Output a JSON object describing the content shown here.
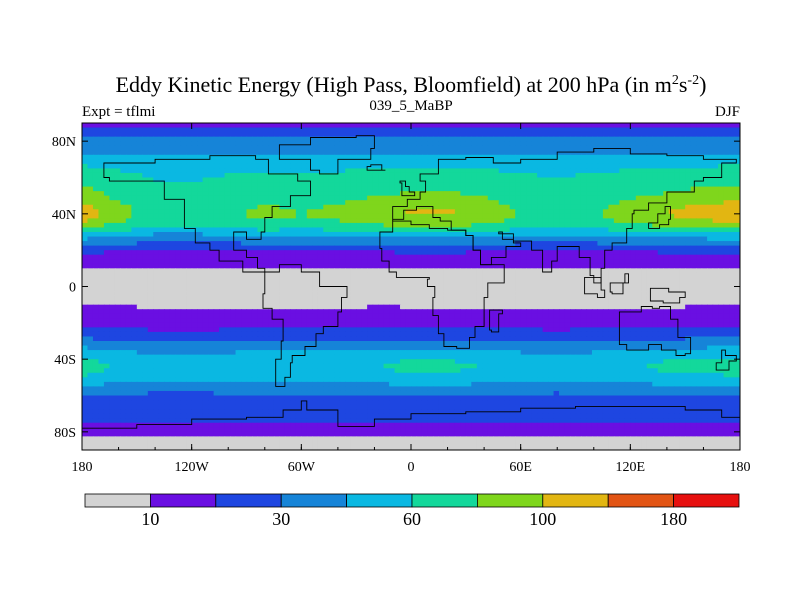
{
  "chart_data": {
    "type": "heatmap",
    "title_main": "Eddy Kinetic Energy (High Pass, Bloomfield) at 200 hPa (in m",
    "title_sup1": "2",
    "title_mid": "s",
    "title_sup2": "-2",
    "title_end": ")",
    "left_label": "Expt = tflmi",
    "center_label": "039_5_MaBP",
    "right_label": "DJF",
    "x_range": [
      -180,
      180
    ],
    "y_range": [
      -90,
      90
    ],
    "x_ticks": [
      {
        "value": -180,
        "label": "180"
      },
      {
        "value": -120,
        "label": "120W"
      },
      {
        "value": -60,
        "label": "60W"
      },
      {
        "value": 0,
        "label": "0"
      },
      {
        "value": 60,
        "label": "60E"
      },
      {
        "value": 120,
        "label": "120E"
      },
      {
        "value": 180,
        "label": "180"
      }
    ],
    "y_ticks": [
      {
        "value": 80,
        "label": "80N"
      },
      {
        "value": 40,
        "label": "40N"
      },
      {
        "value": 0,
        "label": "0"
      },
      {
        "value": -40,
        "label": "40S"
      },
      {
        "value": -80,
        "label": "80S"
      }
    ],
    "levels": [
      {
        "max": 10,
        "color": "#d3d3d3"
      },
      {
        "max": 20,
        "color": "#6a0fe2"
      },
      {
        "max": 30,
        "color": "#1e46e1"
      },
      {
        "max": 45,
        "color": "#1684d8"
      },
      {
        "max": 60,
        "color": "#0ab8e2"
      },
      {
        "max": 80,
        "color": "#13d89b"
      },
      {
        "max": 100,
        "color": "#7fd61c"
      },
      {
        "max": 140,
        "color": "#e2b612"
      },
      {
        "max": 180,
        "color": "#e25414"
      },
      {
        "max": 250,
        "color": "#e6100f"
      }
    ],
    "colorbar_labels": [
      {
        "after_box": 1,
        "label": "10"
      },
      {
        "after_box": 3,
        "label": "30"
      },
      {
        "after_box": 5,
        "label": "60"
      },
      {
        "after_box": 7,
        "label": "100"
      },
      {
        "after_box": 9,
        "label": "180"
      }
    ],
    "lat_bands": [
      {
        "lat": 90,
        "value": 18
      },
      {
        "lat": 85,
        "value": 24
      },
      {
        "lat": 80,
        "value": 33
      },
      {
        "lat": 75,
        "value": 42
      },
      {
        "lat": 70,
        "value": 52
      },
      {
        "lat": 65,
        "value": 58
      },
      {
        "lat": 60,
        "value": 64
      },
      {
        "lat": 55,
        "value": 68
      },
      {
        "lat": 50,
        "value": 72
      },
      {
        "lat": 45,
        "value": 80
      },
      {
        "lat": 40,
        "value": 85
      },
      {
        "lat": 35,
        "value": 78
      },
      {
        "lat": 30,
        "value": 55
      },
      {
        "lat": 25,
        "value": 34
      },
      {
        "lat": 20,
        "value": 21
      },
      {
        "lat": 15,
        "value": 14
      },
      {
        "lat": 10,
        "value": 10
      },
      {
        "lat": 5,
        "value": 9
      },
      {
        "lat": 0,
        "value": 9
      },
      {
        "lat": -5,
        "value": 9
      },
      {
        "lat": -10,
        "value": 10
      },
      {
        "lat": -15,
        "value": 12
      },
      {
        "lat": -20,
        "value": 16
      },
      {
        "lat": -25,
        "value": 22
      },
      {
        "lat": -30,
        "value": 30
      },
      {
        "lat": -35,
        "value": 44
      },
      {
        "lat": -40,
        "value": 54
      },
      {
        "lat": -45,
        "value": 57
      },
      {
        "lat": -50,
        "value": 52
      },
      {
        "lat": -55,
        "value": 40
      },
      {
        "lat": -60,
        "value": 28
      },
      {
        "lat": -65,
        "value": 24
      },
      {
        "lat": -70,
        "value": 25
      },
      {
        "lat": -75,
        "value": 22
      },
      {
        "lat": -80,
        "value": 14
      },
      {
        "lat": -85,
        "value": 8
      },
      {
        "lat": -90,
        "value": 5
      }
    ],
    "lon_modulation": [
      {
        "lon": -180,
        "factor": 1.35
      },
      {
        "lon": -160,
        "factor": 1.05
      },
      {
        "lon": -140,
        "factor": 0.82
      },
      {
        "lon": -120,
        "factor": 0.8
      },
      {
        "lon": -100,
        "factor": 0.9
      },
      {
        "lon": -80,
        "factor": 1.0
      },
      {
        "lon": -60,
        "factor": 0.95
      },
      {
        "lon": -40,
        "factor": 1.0
      },
      {
        "lon": -20,
        "factor": 1.12
      },
      {
        "lon": 0,
        "factor": 1.22
      },
      {
        "lon": 20,
        "factor": 1.22
      },
      {
        "lon": 40,
        "factor": 1.12
      },
      {
        "lon": 60,
        "factor": 0.92
      },
      {
        "lon": 80,
        "factor": 0.85
      },
      {
        "lon": 100,
        "factor": 0.92
      },
      {
        "lon": 120,
        "factor": 1.08
      },
      {
        "lon": 140,
        "factor": 1.2
      },
      {
        "lon": 160,
        "factor": 1.3
      },
      {
        "lon": 180,
        "factor": 1.35
      }
    ],
    "low_regions": [
      {
        "name": "east-pacific-tropics",
        "lon_range": [
          -150,
          -25
        ],
        "lat_range": [
          -12,
          8
        ]
      },
      {
        "name": "africa-indian-west-pacific-tropics",
        "lon_range": [
          -5,
          150
        ],
        "lat_range": [
          -12,
          10
        ]
      }
    ],
    "coastline_polygons": [
      {
        "name": "north-america",
        "points": [
          [
            -168,
            68
          ],
          [
            -140,
            70
          ],
          [
            -110,
            72
          ],
          [
            -85,
            70
          ],
          [
            -78,
            62
          ],
          [
            -62,
            58
          ],
          [
            -55,
            50
          ],
          [
            -66,
            44
          ],
          [
            -76,
            38
          ],
          [
            -80,
            30
          ],
          [
            -82,
            26
          ],
          [
            -90,
            30
          ],
          [
            -97,
            26
          ],
          [
            -97,
            20
          ],
          [
            -90,
            16
          ],
          [
            -84,
            10
          ],
          [
            -80,
            8
          ],
          [
            -92,
            14
          ],
          [
            -105,
            20
          ],
          [
            -110,
            24
          ],
          [
            -118,
            32
          ],
          [
            -124,
            40
          ],
          [
            -124,
            48
          ],
          [
            -135,
            58
          ],
          [
            -152,
            58
          ],
          [
            -165,
            60
          ],
          [
            -168,
            68
          ]
        ]
      },
      {
        "name": "south-america",
        "points": [
          [
            -80,
            8
          ],
          [
            -72,
            12
          ],
          [
            -60,
            8
          ],
          [
            -50,
            0
          ],
          [
            -35,
            -6
          ],
          [
            -38,
            -14
          ],
          [
            -40,
            -22
          ],
          [
            -48,
            -26
          ],
          [
            -52,
            -33
          ],
          [
            -58,
            -38
          ],
          [
            -65,
            -42
          ],
          [
            -66,
            -50
          ],
          [
            -69,
            -55
          ],
          [
            -74,
            -50
          ],
          [
            -74,
            -40
          ],
          [
            -71,
            -30
          ],
          [
            -70,
            -18
          ],
          [
            -76,
            -12
          ],
          [
            -81,
            -4
          ],
          [
            -80,
            8
          ]
        ]
      },
      {
        "name": "greenland",
        "points": [
          [
            -72,
            78
          ],
          [
            -55,
            82
          ],
          [
            -30,
            83
          ],
          [
            -20,
            76
          ],
          [
            -22,
            70
          ],
          [
            -40,
            62
          ],
          [
            -50,
            64
          ],
          [
            -55,
            70
          ],
          [
            -72,
            78
          ]
        ]
      },
      {
        "name": "eurasia",
        "points": [
          [
            -10,
            36
          ],
          [
            -10,
            44
          ],
          [
            -2,
            48
          ],
          [
            5,
            52
          ],
          [
            8,
            58
          ],
          [
            5,
            62
          ],
          [
            15,
            70
          ],
          [
            30,
            71
          ],
          [
            45,
            68
          ],
          [
            60,
            70
          ],
          [
            80,
            74
          ],
          [
            100,
            76
          ],
          [
            120,
            73
          ],
          [
            140,
            72
          ],
          [
            160,
            70
          ],
          [
            178,
            68
          ],
          [
            170,
            60
          ],
          [
            160,
            58
          ],
          [
            155,
            52
          ],
          [
            140,
            46
          ],
          [
            130,
            42
          ],
          [
            122,
            40
          ],
          [
            121,
            32
          ],
          [
            118,
            24
          ],
          [
            110,
            20
          ],
          [
            106,
            10
          ],
          [
            104,
            2
          ],
          [
            100,
            6
          ],
          [
            98,
            16
          ],
          [
            92,
            22
          ],
          [
            88,
            22
          ],
          [
            80,
            14
          ],
          [
            77,
            8
          ],
          [
            72,
            20
          ],
          [
            66,
            25
          ],
          [
            58,
            25
          ],
          [
            56,
            26
          ],
          [
            50,
            30
          ],
          [
            48,
            29
          ],
          [
            56,
            24
          ],
          [
            60,
            22
          ],
          [
            52,
            16
          ],
          [
            44,
            12
          ],
          [
            38,
            20
          ],
          [
            34,
            28
          ],
          [
            30,
            31
          ],
          [
            22,
            36
          ],
          [
            16,
            38
          ],
          [
            12,
            44
          ],
          [
            8,
            44
          ],
          [
            3,
            42
          ],
          [
            -4,
            37
          ],
          [
            -10,
            36
          ]
        ]
      },
      {
        "name": "africa",
        "points": [
          [
            -17,
            21
          ],
          [
            -16,
            14
          ],
          [
            -12,
            8
          ],
          [
            -8,
            5
          ],
          [
            0,
            5
          ],
          [
            10,
            4
          ],
          [
            9,
            0
          ],
          [
            13,
            -6
          ],
          [
            12,
            -16
          ],
          [
            15,
            -26
          ],
          [
            18,
            -33
          ],
          [
            25,
            -34
          ],
          [
            32,
            -28
          ],
          [
            35,
            -22
          ],
          [
            40,
            -15
          ],
          [
            40,
            -6
          ],
          [
            42,
            2
          ],
          [
            51,
            12
          ],
          [
            44,
            12
          ],
          [
            38,
            20
          ],
          [
            34,
            28
          ],
          [
            30,
            31
          ],
          [
            20,
            32
          ],
          [
            10,
            34
          ],
          [
            0,
            36
          ],
          [
            -6,
            36
          ],
          [
            -10,
            30
          ],
          [
            -17,
            21
          ]
        ]
      },
      {
        "name": "australia",
        "points": [
          [
            114,
            -22
          ],
          [
            114,
            -32
          ],
          [
            118,
            -35
          ],
          [
            130,
            -32
          ],
          [
            137,
            -35
          ],
          [
            145,
            -38
          ],
          [
            150,
            -37
          ],
          [
            153,
            -28
          ],
          [
            146,
            -18
          ],
          [
            142,
            -11
          ],
          [
            136,
            -12
          ],
          [
            132,
            -11
          ],
          [
            126,
            -14
          ],
          [
            114,
            -22
          ]
        ]
      },
      {
        "name": "antarctica",
        "points": [
          [
            -180,
            -78
          ],
          [
            -150,
            -76
          ],
          [
            -120,
            -73
          ],
          [
            -90,
            -72
          ],
          [
            -70,
            -68
          ],
          [
            -60,
            -63
          ],
          [
            -57,
            -68
          ],
          [
            -40,
            -77
          ],
          [
            -20,
            -73
          ],
          [
            0,
            -70
          ],
          [
            30,
            -69
          ],
          [
            60,
            -67
          ],
          [
            90,
            -66
          ],
          [
            120,
            -66
          ],
          [
            150,
            -68
          ],
          [
            170,
            -72
          ],
          [
            180,
            -78
          ],
          [
            180,
            -90
          ],
          [
            -180,
            -90
          ]
        ]
      },
      {
        "name": "madagascar",
        "points": [
          [
            43,
            -13
          ],
          [
            50,
            -15
          ],
          [
            48,
            -25
          ],
          [
            44,
            -24
          ],
          [
            43,
            -13
          ]
        ]
      },
      {
        "name": "borneo",
        "points": [
          [
            109,
            2
          ],
          [
            117,
            7
          ],
          [
            119,
            2
          ],
          [
            116,
            -4
          ],
          [
            110,
            -3
          ],
          [
            109,
            2
          ]
        ]
      },
      {
        "name": "sumatra",
        "points": [
          [
            95,
            5
          ],
          [
            104,
            -2
          ],
          [
            106,
            -6
          ],
          [
            102,
            -4
          ],
          [
            95,
            5
          ]
        ]
      },
      {
        "name": "new-guinea",
        "points": [
          [
            131,
            -1
          ],
          [
            141,
            -3
          ],
          [
            150,
            -6
          ],
          [
            147,
            -9
          ],
          [
            138,
            -8
          ],
          [
            131,
            -1
          ]
        ]
      },
      {
        "name": "japan",
        "points": [
          [
            130,
            32
          ],
          [
            136,
            34
          ],
          [
            141,
            37
          ],
          [
            142,
            44
          ],
          [
            139,
            40
          ],
          [
            135,
            35
          ],
          [
            130,
            32
          ]
        ]
      },
      {
        "name": "uk",
        "points": [
          [
            -5,
            50
          ],
          [
            2,
            52
          ],
          [
            -1,
            55
          ],
          [
            -3,
            58
          ],
          [
            -6,
            57
          ],
          [
            -5,
            50
          ]
        ]
      },
      {
        "name": "new-zealand",
        "points": [
          [
            167,
            -46
          ],
          [
            174,
            -41
          ],
          [
            178,
            -38
          ],
          [
            172,
            -35
          ],
          [
            170,
            -42
          ],
          [
            167,
            -46
          ]
        ]
      },
      {
        "name": "iceland",
        "points": [
          [
            -24,
            64
          ],
          [
            -14,
            64
          ],
          [
            -16,
            67
          ],
          [
            -22,
            66
          ],
          [
            -24,
            64
          ]
        ]
      }
    ]
  }
}
